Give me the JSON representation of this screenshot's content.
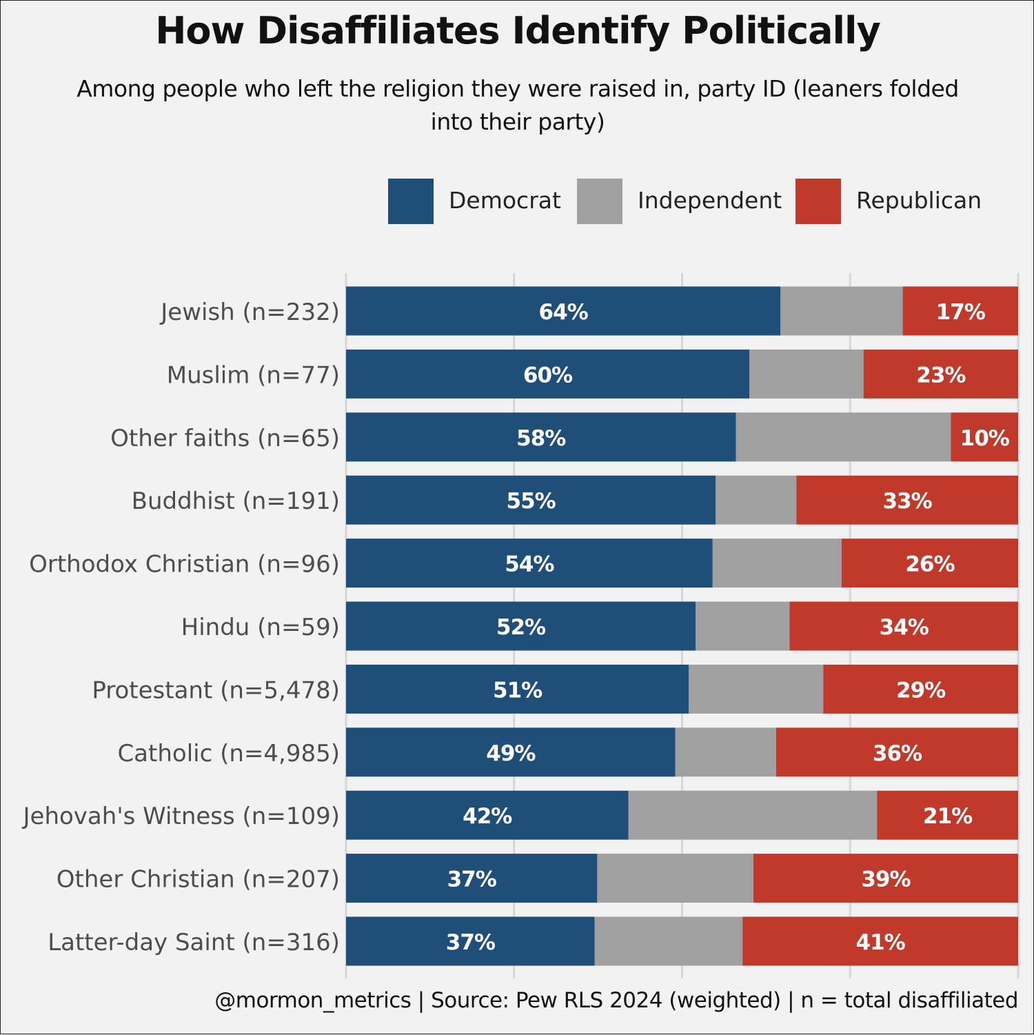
{
  "title": "How Disaffiliates Identify Politically",
  "subtitle": "Among people who left the religion they were raised in, party ID (leaners folded into their party)",
  "footer": "@mormon_metrics  |  Source: Pew RLS 2024 (weighted)  |  n = total disaffiliated",
  "legend": [
    {
      "label": "Democrat",
      "color": "#1f4e79"
    },
    {
      "label": "Independent",
      "color": "#a0a0a0"
    },
    {
      "label": "Republican",
      "color": "#c0392b"
    }
  ],
  "chart_data": {
    "type": "bar",
    "orientation": "horizontal",
    "stacked": true,
    "title": "How Disaffiliates Identify Politically",
    "xlim": [
      0,
      100
    ],
    "grid": true,
    "legend_position": "top-right",
    "categories": [
      "Jewish (n=232)",
      "Muslim (n=77)",
      "Other faiths (n=65)",
      "Buddhist (n=191)",
      "Orthodox Christian (n=96)",
      "Hindu (n=59)",
      "Protestant (n=5,478)",
      "Catholic (n=4,985)",
      "Jehovah's Witness (n=109)",
      "Other Christian (n=207)",
      "Latter-day Saint (n=316)"
    ],
    "series": [
      {
        "name": "Democrat",
        "color": "#1f4e79",
        "values": [
          64,
          60,
          58,
          55,
          54,
          52,
          51,
          49,
          42,
          37,
          37
        ],
        "labels": [
          "64%",
          "60%",
          "58%",
          "55%",
          "54%",
          "52%",
          "51%",
          "49%",
          "42%",
          "37%",
          "37%"
        ]
      },
      {
        "name": "Independent",
        "color": "#a0a0a0",
        "values": [
          18,
          17,
          32,
          12,
          19,
          14,
          20,
          15,
          37,
          23,
          22
        ],
        "labels": []
      },
      {
        "name": "Republican",
        "color": "#c0392b",
        "values": [
          17,
          23,
          10,
          33,
          26,
          34,
          29,
          36,
          21,
          39,
          41
        ],
        "labels": [
          "17%",
          "23%",
          "10%",
          "33%",
          "26%",
          "34%",
          "29%",
          "36%",
          "21%",
          "39%",
          "41%"
        ]
      }
    ]
  }
}
